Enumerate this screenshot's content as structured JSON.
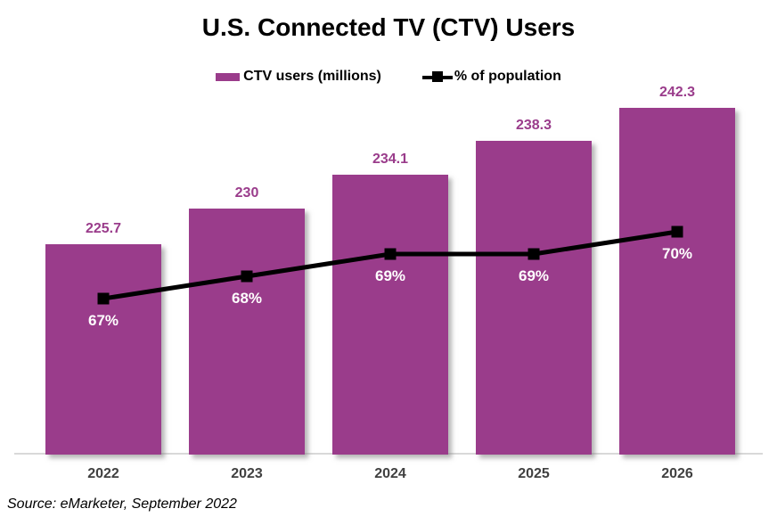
{
  "title": "U.S. Connected TV (CTV) Users",
  "source": "Source: eMarketer, September 2022",
  "colors": {
    "bar": "#9A3C8B",
    "line": "#000000",
    "bar_label": "#9A3C8B",
    "percent_label": "#FFFFFF",
    "axis_label": "#404040",
    "axis_line": "#D9D9D9",
    "background": "#FFFFFF"
  },
  "chart_data": {
    "type": "bar",
    "subtype": "combo-bar-line",
    "title": "U.S. Connected TV (CTV) Users",
    "categories": [
      "2022",
      "2023",
      "2024",
      "2025",
      "2026"
    ],
    "series": [
      {
        "name": "CTV users (millions)",
        "chart_type": "bar",
        "values": [
          225.7,
          230,
          234.1,
          238.3,
          242.3
        ],
        "data_labels": [
          "225.7",
          "230",
          "234.1",
          "238.3",
          "242.3"
        ],
        "color": "#9A3C8B",
        "axis": {
          "min": 200,
          "max": 243.5
        }
      },
      {
        "name": "% of population",
        "chart_type": "line",
        "values": [
          67,
          68,
          69,
          69,
          70
        ],
        "data_labels": [
          "67%",
          "68%",
          "69%",
          "69%",
          "70%"
        ],
        "color": "#000000",
        "axis": {
          "min": 60,
          "max": 76
        }
      }
    ],
    "legend_position": "top",
    "gridlines": false,
    "xlabel": "",
    "ylabel": ""
  }
}
